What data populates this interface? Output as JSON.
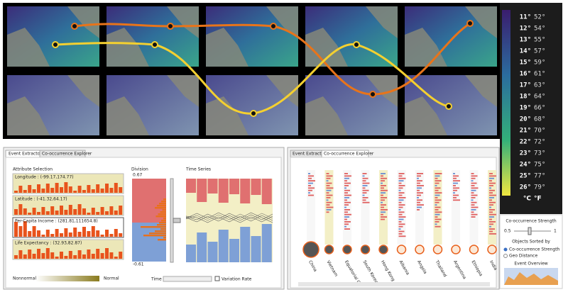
{
  "legend": {
    "rows": [
      {
        "c": "11°",
        "f": "52°"
      },
      {
        "c": "12°",
        "f": "54°"
      },
      {
        "c": "13°",
        "f": "55°"
      },
      {
        "c": "14°",
        "f": "57°"
      },
      {
        "c": "15°",
        "f": "59°"
      },
      {
        "c": "16°",
        "f": "61°"
      },
      {
        "c": "17°",
        "f": "63°"
      },
      {
        "c": "18°",
        "f": "64°"
      },
      {
        "c": "19°",
        "f": "66°"
      },
      {
        "c": "20°",
        "f": "68°"
      },
      {
        "c": "21°",
        "f": "70°"
      },
      {
        "c": "22°",
        "f": "72°"
      },
      {
        "c": "23°",
        "f": "73°"
      },
      {
        "c": "24°",
        "f": "75°"
      },
      {
        "c": "25°",
        "f": "77°"
      },
      {
        "c": "26°",
        "f": "79°"
      }
    ],
    "units": {
      "c": "°C",
      "f": "°F"
    }
  },
  "controls": {
    "strength_title": "Co-occurrence Strength",
    "strength_min": "0.5",
    "strength_max": "1",
    "sort_title": "Objects Sorted by",
    "sort_options": [
      "Co-occurrence Strength",
      "Geo Distance"
    ],
    "overview_title": "Event Overview"
  },
  "left_panel": {
    "tabs": [
      "Event Extractor",
      "Co-occurrence Explorer"
    ],
    "attribute_title": "Attribute Selection",
    "attributes": [
      "Longitude : (-99.17,174.77)",
      "Latitude : (-41.32,64.17)",
      "Per-Capita Income : (281.81,111654.8)",
      "Life Expectancy : (32.93,82.87)"
    ],
    "scale_low": "Nonnormal",
    "scale_high": "Normal",
    "division_title": "Division",
    "division_max": "0.67",
    "division_min": "-0.61",
    "time_series_title": "Time Series",
    "time_lag": "Time Lag",
    "variation_rate": "Variation Rate"
  },
  "right_panel": {
    "tabs": [
      "Event Extractor",
      "Co-occurrence Explorer"
    ],
    "countries": [
      "China",
      "Vietnam",
      "Equatorial G",
      "South Korea",
      "Hong Kong",
      "Albania",
      "Angola",
      "Thailand",
      "Argentina",
      "Ethiopia",
      "India"
    ]
  }
}
